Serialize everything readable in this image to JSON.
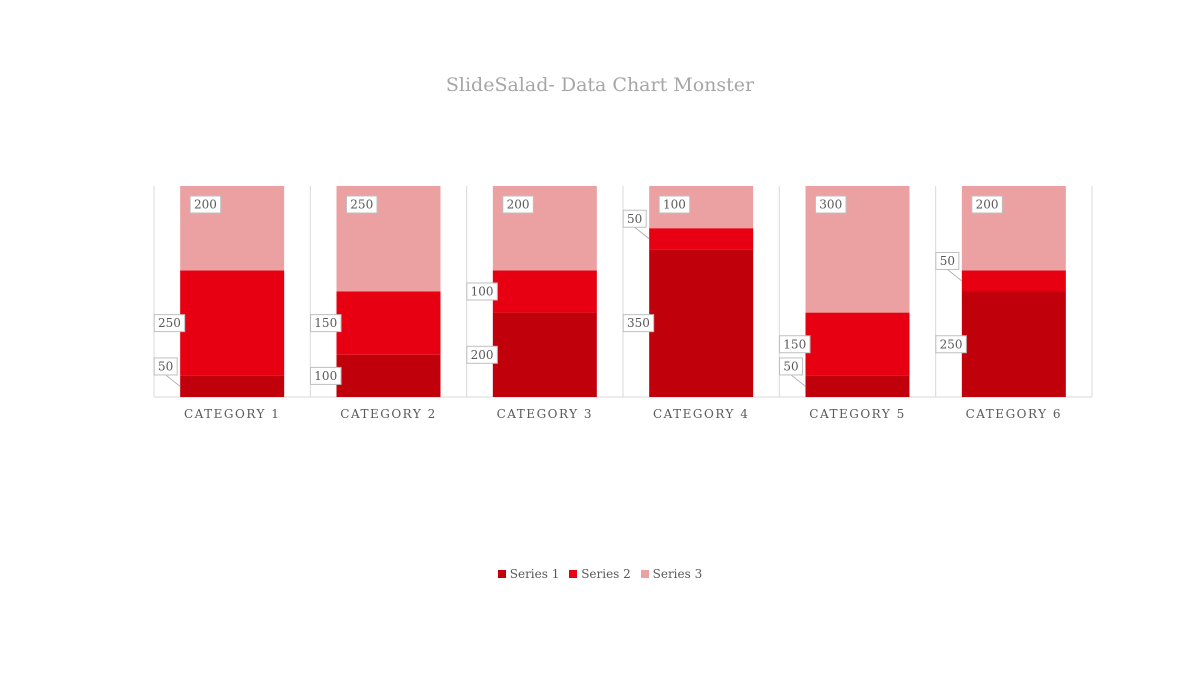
{
  "chart_data": {
    "type": "bar",
    "stacked": true,
    "title": "SlideSalad- Data Chart Monster",
    "categories": [
      "CATEGORY 1",
      "CATEGORY 2",
      "CATEGORY 3",
      "CATEGORY 4",
      "CATEGORY 5",
      "CATEGORY 6"
    ],
    "series": [
      {
        "name": "Series 1",
        "values": [
          50,
          100,
          200,
          350,
          50,
          250
        ],
        "color": "#c0000b"
      },
      {
        "name": "Series 2",
        "values": [
          250,
          150,
          100,
          50,
          150,
          50
        ],
        "color": "#e60012"
      },
      {
        "name": "Series 3",
        "values": [
          200,
          250,
          200,
          100,
          300,
          200
        ],
        "color": "#eba1a1"
      }
    ],
    "ylim": [
      0,
      500
    ],
    "grid": false,
    "data_labels": true,
    "legend_position": "bottom"
  }
}
